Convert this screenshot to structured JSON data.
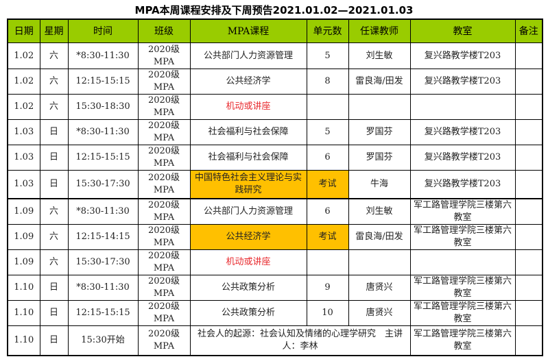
{
  "title": "MPA本周课程安排及下周预告2021.01.02—2021.01.03",
  "headers": [
    "日期",
    "星期",
    "时间",
    "班级",
    "MPA课程",
    "单元数",
    "任课教师",
    "教室",
    "备注"
  ],
  "highlight_color": "#ffc000",
  "header_color": "#99cc00",
  "rows": [
    {
      "date": "1.02",
      "weekday": "六",
      "time": "*8:30-11:30",
      "class": "2020级MPA",
      "course": "公共部门人力资源管理",
      "units": "5",
      "teacher": "刘生敏",
      "room": "复兴路教学楼T203",
      "note": ""
    },
    {
      "date": "1.02",
      "weekday": "六",
      "time": "12:15-15:15",
      "class": "2020级MPA",
      "course": "公共经济学",
      "units": "8",
      "teacher": "雷良海/田发",
      "room": "复兴路教学楼T203",
      "note": ""
    },
    {
      "date": "1.02",
      "weekday": "六",
      "time": "15:30-18:30",
      "class": "2020级MPA",
      "course": "机动或讲座",
      "units": "",
      "teacher": "",
      "room": "",
      "note": "",
      "red": true
    },
    {
      "date": "1.03",
      "weekday": "日",
      "time": "*8:30-11:30",
      "class": "2020级MPA",
      "course": "社会福利与社会保障",
      "units": "5",
      "teacher": "罗国芬",
      "room": "复兴路教学楼T203",
      "note": ""
    },
    {
      "date": "1.03",
      "weekday": "日",
      "time": "12:15-15:15",
      "class": "2020级MPA",
      "course": "社会福利与社会保障",
      "units": "6",
      "teacher": "罗国芬",
      "room": "复兴路教学楼T203",
      "note": ""
    },
    {
      "date": "1.03",
      "weekday": "日",
      "time": "15:30-17:30",
      "class": "2020级MPA",
      "course": "中国特色社会主义理论与实践研究",
      "units": "考试",
      "teacher": "牛海",
      "room": "复兴路教学楼T203",
      "note": "",
      "hl": true
    },
    {
      "date": "1.09",
      "weekday": "六",
      "time": "*8:30-11:30",
      "class": "2020级MPA",
      "course": "公共部门人力资源管理",
      "units": "6",
      "teacher": "刘生敏",
      "room": "军工路管理学院三楼第六教室",
      "note": ""
    },
    {
      "date": "1.09",
      "weekday": "六",
      "time": "12:15-14:15",
      "class": "2020级MPA",
      "course": "公共经济学",
      "units": "考试",
      "teacher": "雷良海/田发",
      "room": "军工路管理学院三楼第六教室",
      "note": "",
      "hl": true
    },
    {
      "date": "1.09",
      "weekday": "六",
      "time": "15:30-17:30",
      "class": "2020级MPA",
      "course": "机动或讲座",
      "units": "",
      "teacher": "",
      "room": "",
      "note": "",
      "red": true
    },
    {
      "date": "1.10",
      "weekday": "日",
      "time": "*8:30-11:30",
      "class": "2020级MPA",
      "course": "公共政策分析",
      "units": "9",
      "teacher": "唐贤兴",
      "room": "军工路管理学院三楼第六教室",
      "note": ""
    },
    {
      "date": "1.10",
      "weekday": "日",
      "time": "12:15-15:15",
      "class": "2020级MPA",
      "course": "公共政策分析",
      "units": "10",
      "teacher": "唐贤兴",
      "room": "军工路管理学院三楼第六教室",
      "note": ""
    },
    {
      "date": "1.10",
      "weekday": "日",
      "time": "15:30开始",
      "class": "2020级MPA",
      "course": "社会人的起源：社会认知及情绪的心理学研究　主讲人：李林",
      "room": "军工路管理学院三楼第六教室",
      "note": "",
      "merged": true
    }
  ]
}
